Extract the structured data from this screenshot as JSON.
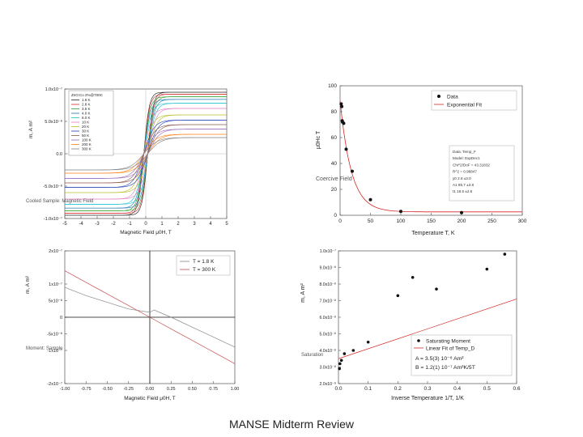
{
  "footer": "MANSE Midterm Review",
  "chart_data": [
    {
      "id": "hysteresis",
      "type": "line",
      "title": "",
      "xlabel": "Magnetic Field μ0H, T",
      "ylabel": "m, A m²",
      "ylabel_side": "Cooled Sample: Magnetic Field",
      "xlim": [
        -5,
        5
      ],
      "ylim": [
        -1e-07,
        1e-07
      ],
      "xticks": [
        -5,
        -4,
        -3,
        -2,
        -1,
        0,
        1,
        2,
        3,
        4,
        5
      ],
      "xtick_labels": [
        "-5",
        "-4",
        "-3",
        "-2",
        "-1",
        "0",
        "1",
        "2",
        "3",
        "4",
        "5"
      ],
      "yticks": [
        -1e-07,
        -5e-08,
        0,
        5e-08,
        1e-07
      ],
      "ytick_labels": [
        "-1.0x10⁻⁷",
        "-5.0x10⁻⁸",
        "0.0",
        "5.0x10⁻⁸",
        "1.0x10⁻⁷"
      ],
      "legend_title": "ZnO:Co 2%@700C",
      "series": [
        {
          "name": "1.8 K",
          "color": "#222222",
          "ms": 9.5e-08,
          "k": 3.0
        },
        {
          "name": "2.8 K",
          "color": "#d62728",
          "ms": 9.2e-08,
          "k": 2.8
        },
        {
          "name": "3.5 K",
          "color": "#2ca02c",
          "ms": 8.8e-08,
          "k": 2.6
        },
        {
          "name": "4.0 K",
          "color": "#1f77b4",
          "ms": 8.4e-08,
          "k": 2.4
        },
        {
          "name": "6.0 K",
          "color": "#17becf",
          "ms": 7.8e-08,
          "k": 2.2
        },
        {
          "name": "10 K",
          "color": "#e377c2",
          "ms": 7e-08,
          "k": 2.0
        },
        {
          "name": "20 K",
          "color": "#bcbd22",
          "ms": 6e-08,
          "k": 1.8
        },
        {
          "name": "30 K",
          "color": "#1f3fb4",
          "ms": 5.2e-08,
          "k": 1.6
        },
        {
          "name": "50 K",
          "color": "#8c564b",
          "ms": 4.5e-08,
          "k": 1.5
        },
        {
          "name": "100 K",
          "color": "#9467bd",
          "ms": 3.8e-08,
          "k": 1.4
        },
        {
          "name": "200 K",
          "color": "#ff7f0e",
          "ms": 3e-08,
          "k": 1.3
        },
        {
          "name": "300 K",
          "color": "#7f7f7f",
          "ms": 2.5e-08,
          "k": 1.2
        }
      ]
    },
    {
      "id": "saturation-vs-temperature",
      "type": "scatter",
      "xlabel": "Temperature T, K",
      "ylabel": "μ0Hc T",
      "ylabel_side": "Coercive Field",
      "xlim": [
        0,
        300
      ],
      "ylim": [
        0,
        100
      ],
      "xticks": [
        0,
        50,
        100,
        150,
        200,
        250,
        300
      ],
      "yticks": [
        0,
        20,
        40,
        60,
        80,
        100
      ],
      "points": {
        "x": [
          1.8,
          2.8,
          3.5,
          4,
          6,
          10,
          20,
          50,
          100,
          200
        ],
        "y": [
          86,
          84,
          73,
          72,
          71,
          51,
          34,
          12,
          3,
          2
        ]
      },
      "fit": {
        "name": "Exponential Fit",
        "y0": 2.6,
        "A1": 85.7,
        "t1": 18.5
      },
      "legend": [
        "Data",
        "Exponential Fit"
      ],
      "fit_box": [
        "Data: Temp_F",
        "Model: ExpDec1",
        "Chi^2/DoF      = 43.31832",
        "R^2           = 0.98847",
        "y0    2.6     ±3.0",
        "A1    85.7    ±3.8",
        "t1    18.5    ±2.6"
      ]
    },
    {
      "id": "room-temperature-loop",
      "type": "line",
      "xlabel": "Magnetic Field μ0H, T",
      "ylabel": "m, A m²",
      "ylabel_side": "Moment: Sample",
      "xlim": [
        -1.0,
        1.0
      ],
      "ylim": [
        -2e-07,
        2e-07
      ],
      "xticks": [
        -1.0,
        -0.75,
        -0.5,
        -0.25,
        0.0,
        0.25,
        0.5,
        0.75,
        1.0
      ],
      "xtick_labels": [
        "-1.00",
        "-0.75",
        "-0.50",
        "-0.25",
        "0.00",
        "0.25",
        "0.50",
        "0.75",
        "1.00"
      ],
      "yticks": [
        -2e-07,
        -1e-07,
        -5e-08,
        0,
        5e-08,
        1e-07,
        2e-07
      ],
      "ytick_labels": [
        "-2x10⁻⁷",
        "-1x10⁻⁷",
        "-5x10⁻⁸",
        "0",
        "5x10⁻⁸",
        "1x10⁻⁷",
        "2x10⁻⁷"
      ],
      "series": [
        {
          "name": "T = 1.8 K",
          "color": "#888888",
          "x": [
            -1,
            -0.75,
            -0.5,
            -0.25,
            0,
            0.05,
            0.25,
            0.5,
            0.75,
            1
          ],
          "y": [
            9e-08,
            6.5e-08,
            4.5e-08,
            2.5e-08,
            1.5e-08,
            2.2e-08,
            0,
            -3e-08,
            -6e-08,
            -9e-08
          ]
        },
        {
          "name": "T = 300 K",
          "color": "#c44e52",
          "x": [
            -1,
            -0.75,
            -0.5,
            -0.25,
            0,
            0.25,
            0.5,
            0.75,
            1
          ],
          "y": [
            1.4e-07,
            1.05e-07,
            7e-08,
            3.5e-08,
            0,
            -3.5e-08,
            -7e-08,
            -1.05e-07,
            -1.4e-07
          ]
        }
      ]
    },
    {
      "id": "moment-vs-inverse-temperature",
      "type": "scatter",
      "xlabel": "Inverse Temperature 1/T, 1/K",
      "ylabel": "m, A m²",
      "ylabel_side": "Saturation",
      "xlim": [
        0.0,
        0.6
      ],
      "ylim": [
        2e-08,
        1e-07
      ],
      "xticks": [
        0.0,
        0.1,
        0.2,
        0.3,
        0.4,
        0.5,
        0.6
      ],
      "xtick_labels": [
        "0.0",
        "0.1",
        "0.2",
        "0.3",
        "0.4",
        "0.5",
        "0.6"
      ],
      "yticks": [
        2e-08,
        3e-08,
        4e-08,
        5e-08,
        6e-08,
        7e-08,
        8e-08,
        9e-08,
        1e-07
      ],
      "ytick_labels": [
        "2.0x10⁻⁸",
        "3.0x10⁻⁸",
        "4.0x10⁻⁸",
        "5.0x10⁻⁸",
        "6.0x10⁻⁸",
        "7.0x10⁻⁸",
        "8.0x10⁻⁸",
        "9.0x10⁻⁸",
        "1.0x10⁻⁷"
      ],
      "points": {
        "x": [
          0.0033,
          0.005,
          0.01,
          0.02,
          0.05,
          0.1,
          0.2,
          0.25,
          0.33,
          0.5,
          0.56
        ],
        "y": [
          2.9e-08,
          3.2e-08,
          3.4e-08,
          3.8e-08,
          4e-08,
          4.5e-08,
          7.3e-08,
          8.4e-08,
          7.7e-08,
          8.9e-08,
          9.8e-08
        ]
      },
      "fit": {
        "name": "Linear Fit of Temp_D",
        "A": 3.5e-08,
        "B": 1.2e-07
      },
      "legend": [
        "Saturating Moment",
        "Linear Fit of Temp_D"
      ],
      "fit_lines": [
        "A = 3.5(3) 10⁻⁸ Am²",
        "B = 1.2(1) 10⁻⁷ Am²K/5T"
      ]
    }
  ]
}
